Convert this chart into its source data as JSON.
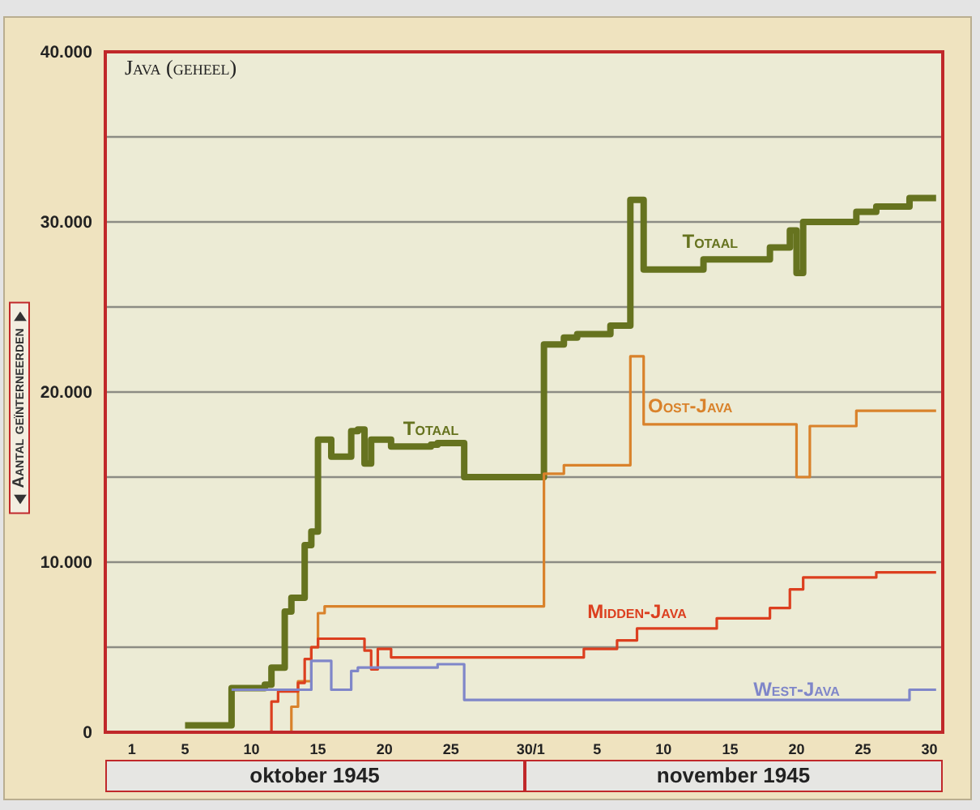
{
  "chart_data": {
    "type": "step",
    "title": "Java (geheel)",
    "ylabel": "Aantal geïnterneerden",
    "annotations": [
      "Totaal",
      "oktober 1945",
      "november 1945"
    ],
    "xlim": [
      "1945-09-29",
      "1945-12-01"
    ],
    "xticks": [
      {
        "value": "1945-10-01",
        "label": "1"
      },
      {
        "value": "1945-10-05",
        "label": "5"
      },
      {
        "value": "1945-10-10",
        "label": "10"
      },
      {
        "value": "1945-10-15",
        "label": "15"
      },
      {
        "value": "1945-10-20",
        "label": "20"
      },
      {
        "value": "1945-10-25",
        "label": "25"
      },
      {
        "value": "1945-10-31",
        "label": "30/1"
      },
      {
        "value": "1945-11-05",
        "label": "5"
      },
      {
        "value": "1945-11-10",
        "label": "10"
      },
      {
        "value": "1945-11-15",
        "label": "15"
      },
      {
        "value": "1945-11-20",
        "label": "20"
      },
      {
        "value": "1945-11-25",
        "label": "25"
      },
      {
        "value": "1945-11-30",
        "label": "30"
      }
    ],
    "ylim": [
      0,
      40000
    ],
    "yticks": [
      0,
      {
        "value": 5000,
        "label": null
      },
      {
        "value": 10000,
        "label": "10.000"
      },
      {
        "value": 15000,
        "label": null
      },
      {
        "value": 20000,
        "label": "20.000"
      },
      {
        "value": 25000,
        "label": null
      },
      {
        "value": 30000,
        "label": "30.000"
      },
      {
        "value": 35000,
        "label": null
      },
      {
        "value": 40000,
        "label": "40.000"
      }
    ],
    "grid": "y",
    "series": [
      {
        "name": "Totaal",
        "color": "#66731f",
        "x": [
          "1945-10-05",
          "1945-10-08T12:00",
          "1945-10-11",
          "1945-10-11T12:00",
          "1945-10-12T12:00",
          "1945-10-13",
          "1945-10-14",
          "1945-10-14T12:00",
          "1945-10-15",
          "1945-10-16",
          "1945-10-17T12:00",
          "1945-10-18",
          "1945-10-18T12:00",
          "1945-10-19",
          "1945-10-20T12:00",
          "1945-10-23T12:00",
          "1945-10-24",
          "1945-10-26",
          "1945-11-01",
          "1945-11-02T12:00",
          "1945-11-03T12:00",
          "1945-11-06",
          "1945-11-07T12:00",
          "1945-11-08T12:00",
          "1945-11-13",
          "1945-11-18",
          "1945-11-19T12:00",
          "1945-11-20",
          "1945-11-20T12:00",
          "1945-11-24T12:00",
          "1945-11-26",
          "1945-11-28T12:00",
          "1945-11-30T12:00"
        ],
        "values": [
          400,
          2600,
          2800,
          3800,
          7100,
          7900,
          11000,
          11800,
          17200,
          16200,
          17700,
          17800,
          15800,
          17200,
          16800,
          16900,
          17000,
          15000,
          22800,
          23200,
          23400,
          23900,
          31300,
          27200,
          27800,
          28500,
          29500,
          27000,
          30000,
          30600,
          30900,
          31400,
          31400
        ]
      },
      {
        "name": "Oost-Java",
        "color": "#d9822b",
        "x": [
          "1945-10-12T12:00",
          "1945-10-13",
          "1945-10-13T12:00",
          "1945-10-14T12:00",
          "1945-10-15",
          "1945-10-15T12:00",
          "1945-11-01",
          "1945-11-02T12:00",
          "1945-11-07T12:00",
          "1945-11-08T12:00",
          "1945-11-20",
          "1945-11-21",
          "1945-11-24T12:00",
          "1945-11-30T12:00"
        ],
        "values": [
          0,
          1500,
          3000,
          5000,
          7000,
          7400,
          15200,
          15700,
          22100,
          18100,
          15000,
          18000,
          18900,
          18900
        ]
      },
      {
        "name": "Midden-Java",
        "color": "#dc3f1f",
        "x": [
          "1945-10-11",
          "1945-10-11T12:00",
          "1945-10-12",
          "1945-10-13T12:00",
          "1945-10-14",
          "1945-10-14T12:00",
          "1945-10-15",
          "1945-10-18T12:00",
          "1945-10-19",
          "1945-10-19T12:00",
          "1945-10-20T12:00",
          "1945-11-04",
          "1945-11-06T12:00",
          "1945-11-08",
          "1945-11-14",
          "1945-11-18",
          "1945-11-19T12:00",
          "1945-11-20T12:00",
          "1945-11-26",
          "1945-11-30T12:00"
        ],
        "values": [
          0,
          1800,
          2400,
          2900,
          4300,
          5000,
          5500,
          4800,
          3700,
          4900,
          4400,
          4900,
          5400,
          6100,
          6700,
          7300,
          8400,
          9100,
          9400,
          9400
        ]
      },
      {
        "name": "West-Java",
        "color": "#7f86c9",
        "x": [
          "1945-10-08T12:00",
          "1945-10-14T12:00",
          "1945-10-16",
          "1945-10-17T12:00",
          "1945-10-18",
          "1945-10-24",
          "1945-10-26",
          "1945-11-28T12:00",
          "1945-11-30T12:00"
        ],
        "values": [
          2500,
          4200,
          2500,
          3600,
          3800,
          4000,
          1900,
          2500,
          2500
        ]
      }
    ]
  }
}
